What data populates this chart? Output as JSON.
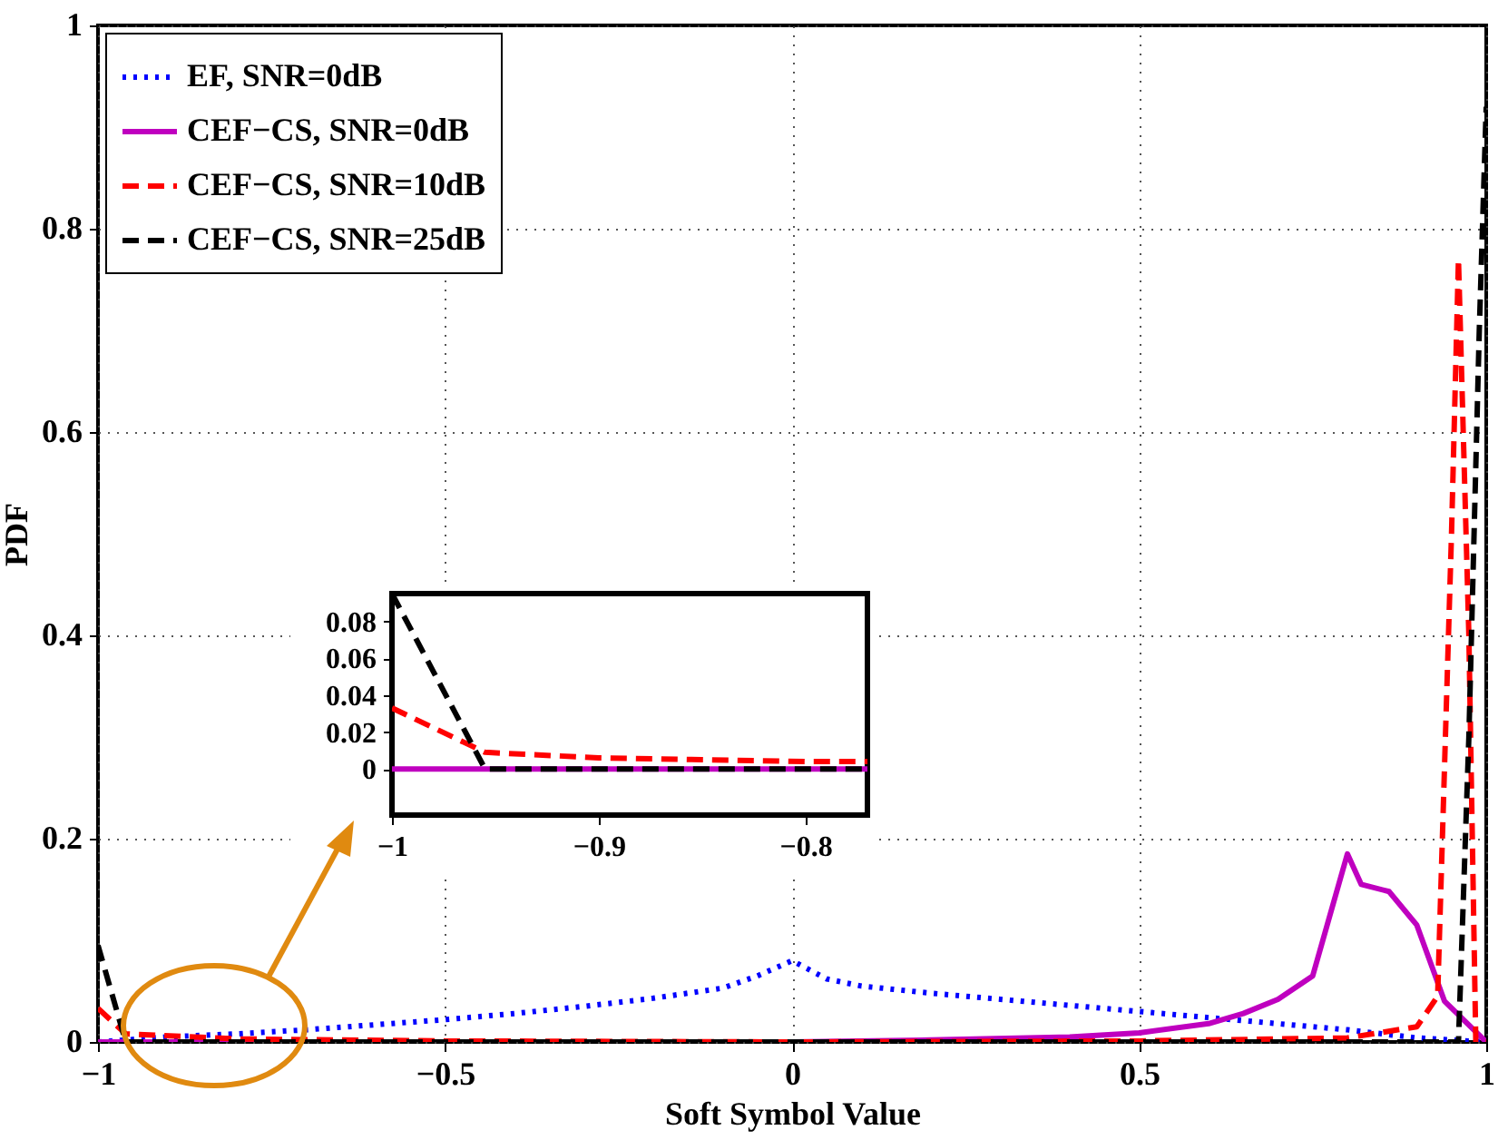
{
  "chart_data": [
    {
      "type": "line",
      "xlabel": "Soft Symbol Value",
      "ylabel": "PDF",
      "xlim": [
        -1,
        1
      ],
      "xticks": [
        -1,
        -0.5,
        0,
        0.5,
        1
      ],
      "ylim": [
        0,
        1
      ],
      "yticks": [
        0,
        0.2,
        0.4,
        0.6,
        0.8,
        1
      ],
      "grid": true,
      "legend": "top left",
      "series": [
        {
          "name": "EF, SNR=0dB",
          "color": "#0000ff",
          "line_style": "dotted",
          "x": [
            -1,
            -0.9,
            -0.8,
            -0.7,
            -0.6,
            -0.5,
            -0.4,
            -0.3,
            -0.2,
            -0.1,
            -0.05,
            0,
            0.05,
            0.1,
            0.2,
            0.3,
            0.4,
            0.5,
            0.6,
            0.7,
            0.8,
            0.9,
            1
          ],
          "values": [
            0,
            0.005,
            0.008,
            0.012,
            0.017,
            0.022,
            0.028,
            0.035,
            0.043,
            0.053,
            0.065,
            0.08,
            0.062,
            0.055,
            0.048,
            0.042,
            0.036,
            0.03,
            0.024,
            0.018,
            0.012,
            0.004,
            0
          ]
        },
        {
          "name": "CEF−CS, SNR=0dB",
          "color": "#bf00bf",
          "line_style": "solid",
          "x": [
            -1,
            -0.5,
            0,
            0.2,
            0.4,
            0.5,
            0.6,
            0.65,
            0.7,
            0.75,
            0.8,
            0.82,
            0.86,
            0.9,
            0.94,
            1
          ],
          "values": [
            0,
            0,
            0,
            0.002,
            0.005,
            0.009,
            0.018,
            0.028,
            0.042,
            0.065,
            0.185,
            0.155,
            0.148,
            0.115,
            0.04,
            0
          ]
        },
        {
          "name": "CEF−CS, SNR=10dB",
          "color": "#ff0000",
          "line_style": "dashed",
          "x": [
            -1,
            -0.96,
            -0.8,
            -0.5,
            0,
            0.5,
            0.8,
            0.9,
            0.93,
            0.95,
            0.96,
            0.975,
            0.985,
            1
          ],
          "values": [
            0.033,
            0.008,
            0.003,
            0.001,
            0,
            0.001,
            0.004,
            0.015,
            0.045,
            0.5,
            0.77,
            0.4,
            0,
            0
          ]
        },
        {
          "name": "CEF−CS, SNR=25dB",
          "color": "#000000",
          "line_style": "dashed",
          "x": [
            -1,
            -0.96,
            0.96,
            0.975,
            0.99,
            1
          ],
          "values": [
            0.095,
            0,
            0,
            0.3,
            0.7,
            0.92
          ]
        }
      ]
    },
    {
      "type": "line",
      "xlim": [
        -1,
        -0.77
      ],
      "xticks": [
        -1,
        -0.9,
        -0.8
      ],
      "ylim": [
        -0.025,
        0.095
      ],
      "yticks": [
        0,
        0.02,
        0.04,
        0.06,
        0.08
      ],
      "series": [
        {
          "color": "#bf00bf",
          "line_style": "solid",
          "x": [
            -1,
            -0.77
          ],
          "values": [
            0,
            0
          ]
        },
        {
          "color": "#ff0000",
          "line_style": "dashed",
          "x": [
            -1,
            -0.955,
            -0.9,
            -0.85,
            -0.8,
            -0.77
          ],
          "values": [
            0.033,
            0.009,
            0.006,
            0.005,
            0.004,
            0.004
          ]
        },
        {
          "color": "#000000",
          "line_style": "dashed",
          "x": [
            -1,
            -0.955,
            -0.77
          ],
          "values": [
            0.095,
            0,
            0
          ]
        }
      ]
    }
  ]
}
